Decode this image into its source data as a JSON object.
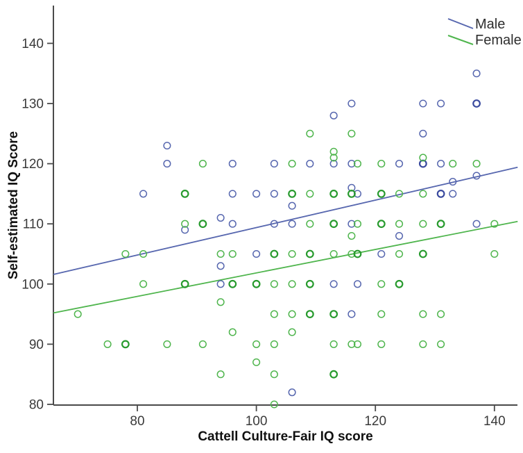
{
  "figure": {
    "legend": [
      {
        "label": "Male",
        "color": "#5767af"
      },
      {
        "label": "Female",
        "color": "#4fb54d"
      }
    ],
    "x_axis": {
      "title": "Cattell Culture-Fair IQ score",
      "ticks": [
        80,
        100,
        120,
        140
      ]
    },
    "y_axis": {
      "title": "Self-estimated IQ Score",
      "ticks": [
        80,
        90,
        100,
        110,
        120,
        130,
        140
      ]
    }
  },
  "chart_data": {
    "type": "scatter",
    "title": "",
    "xlabel": "Cattell Culture-Fair IQ score",
    "ylabel": "Self-estimated IQ Score",
    "xlim": [
      65.9,
      143.9
    ],
    "ylim": [
      80,
      146.3
    ],
    "grid": false,
    "legend_position": "top-right",
    "marker": "open-circle",
    "note": "points are [x, y, multiplicity]; multiplicity 2 = darker overlapping marker",
    "series": [
      {
        "name": "Male",
        "color": "#5767af",
        "color_bold": "#39499e",
        "trend": {
          "x1": 65.9,
          "y1": 101.6,
          "x2": 143.9,
          "y2": 119.4
        },
        "points": [
          [
            81,
            115
          ],
          [
            85,
            123
          ],
          [
            85,
            120
          ],
          [
            88,
            109
          ],
          [
            94,
            111
          ],
          [
            94,
            103
          ],
          [
            94,
            100
          ],
          [
            96,
            120
          ],
          [
            96,
            115
          ],
          [
            96,
            110
          ],
          [
            100,
            115
          ],
          [
            100,
            105
          ],
          [
            103,
            120
          ],
          [
            103,
            115
          ],
          [
            103,
            110
          ],
          [
            106,
            113
          ],
          [
            106,
            110
          ],
          [
            106,
            82
          ],
          [
            109,
            120
          ],
          [
            113,
            128
          ],
          [
            113,
            120
          ],
          [
            113,
            100
          ],
          [
            116,
            130
          ],
          [
            116,
            120
          ],
          [
            116,
            116
          ],
          [
            116,
            110
          ],
          [
            116,
            95
          ],
          [
            117,
            115
          ],
          [
            117,
            100
          ],
          [
            121,
            105
          ],
          [
            124,
            120
          ],
          [
            124,
            108
          ],
          [
            128,
            130
          ],
          [
            128,
            125
          ],
          [
            128,
            120,
            2
          ],
          [
            131,
            130
          ],
          [
            131,
            120
          ],
          [
            131,
            115,
            2
          ],
          [
            133,
            117
          ],
          [
            133,
            115
          ],
          [
            137,
            135
          ],
          [
            137,
            130,
            2
          ],
          [
            137,
            118
          ],
          [
            137,
            110
          ]
        ]
      },
      {
        "name": "Female",
        "color": "#4fb54d",
        "color_bold": "#279a2d",
        "trend": {
          "x1": 65.9,
          "y1": 95.2,
          "x2": 143.9,
          "y2": 110.4
        },
        "points": [
          [
            70,
            95
          ],
          [
            75,
            90
          ],
          [
            78,
            105
          ],
          [
            78,
            90,
            2
          ],
          [
            81,
            105
          ],
          [
            81,
            100
          ],
          [
            85,
            90
          ],
          [
            88,
            115,
            2
          ],
          [
            88,
            110
          ],
          [
            88,
            100,
            2
          ],
          [
            91,
            120
          ],
          [
            91,
            110,
            2
          ],
          [
            91,
            90
          ],
          [
            94,
            105
          ],
          [
            94,
            97
          ],
          [
            94,
            85
          ],
          [
            96,
            105
          ],
          [
            96,
            100,
            2
          ],
          [
            96,
            92
          ],
          [
            100,
            100,
            2
          ],
          [
            100,
            90
          ],
          [
            100,
            87
          ],
          [
            103,
            105,
            2
          ],
          [
            103,
            100
          ],
          [
            103,
            95
          ],
          [
            103,
            90
          ],
          [
            103,
            85
          ],
          [
            103,
            80
          ],
          [
            106,
            120
          ],
          [
            106,
            115,
            2
          ],
          [
            106,
            105
          ],
          [
            106,
            100
          ],
          [
            106,
            95
          ],
          [
            106,
            92
          ],
          [
            109,
            125
          ],
          [
            109,
            115
          ],
          [
            109,
            110
          ],
          [
            109,
            105,
            2
          ],
          [
            109,
            100,
            2
          ],
          [
            109,
            95,
            2
          ],
          [
            113,
            122
          ],
          [
            113,
            121
          ],
          [
            113,
            115,
            2
          ],
          [
            113,
            110,
            2
          ],
          [
            113,
            105
          ],
          [
            113,
            95,
            2
          ],
          [
            113,
            90
          ],
          [
            113,
            85,
            2
          ],
          [
            116,
            125
          ],
          [
            116,
            115,
            2
          ],
          [
            116,
            108
          ],
          [
            116,
            105
          ],
          [
            116,
            90
          ],
          [
            117,
            120
          ],
          [
            117,
            110
          ],
          [
            117,
            105,
            2
          ],
          [
            117,
            90
          ],
          [
            121,
            120
          ],
          [
            121,
            115,
            2
          ],
          [
            121,
            110,
            2
          ],
          [
            121,
            100
          ],
          [
            121,
            95
          ],
          [
            121,
            90
          ],
          [
            124,
            115
          ],
          [
            124,
            110
          ],
          [
            124,
            105
          ],
          [
            124,
            100,
            2
          ],
          [
            128,
            121
          ],
          [
            128,
            115
          ],
          [
            128,
            110
          ],
          [
            128,
            105,
            2
          ],
          [
            128,
            95
          ],
          [
            128,
            90
          ],
          [
            131,
            110,
            2
          ],
          [
            131,
            95
          ],
          [
            131,
            90
          ],
          [
            133,
            120
          ],
          [
            137,
            120
          ],
          [
            140,
            110
          ],
          [
            140,
            105
          ]
        ]
      }
    ]
  }
}
